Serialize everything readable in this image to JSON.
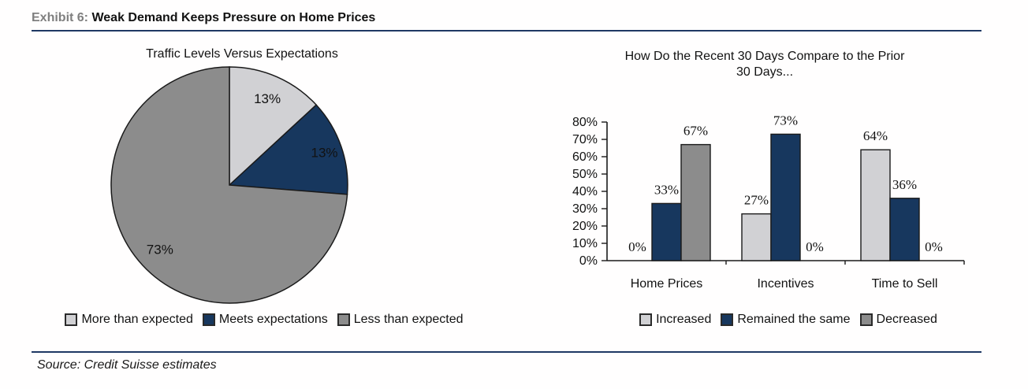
{
  "header": {
    "exhibit_label": "Exhibit 6:",
    "title": "Weak Demand Keeps Pressure on Home Prices"
  },
  "source": {
    "text": "Source: Credit Suisse estimates"
  },
  "colors": {
    "accent_rule": "#1f3864",
    "navy": "#17375e",
    "gray": "#8c8c8c",
    "light_gray": "#d1d1d4",
    "outline": "#1a1a1a",
    "exhibit_label_gray": "#7f7f7f"
  },
  "chart_data": [
    {
      "type": "pie",
      "title": "Traffic Levels Versus Expectations",
      "labels": [
        "More than expected",
        "Meets expectations",
        "Less than expected"
      ],
      "values": [
        13,
        13,
        73
      ],
      "value_labels": [
        "13%",
        "13%",
        "73%"
      ],
      "colors": [
        "#d1d1d4",
        "#17375e",
        "#8c8c8c"
      ],
      "start_angle_deg": -90,
      "direction": "clockwise",
      "legend_position": "bottom"
    },
    {
      "type": "bar",
      "title": "How Do the Recent 30 Days Compare to the Prior 30 Days...",
      "title_lines": [
        "How Do the Recent 30 Days Compare to the Prior",
        "30 Days..."
      ],
      "categories": [
        "Home Prices",
        "Incentives",
        "Time to Sell"
      ],
      "series": [
        {
          "name": "Increased",
          "color": "#d1d1d4",
          "values": [
            0,
            27,
            64
          ],
          "value_labels": [
            "0%",
            "27%",
            "64%"
          ]
        },
        {
          "name": "Remained the same",
          "color": "#17375e",
          "values": [
            33,
            73,
            36
          ],
          "value_labels": [
            "33%",
            "73%",
            "36%"
          ]
        },
        {
          "name": "Decreased",
          "color": "#8c8c8c",
          "values": [
            67,
            0,
            0
          ],
          "value_labels": [
            "67%",
            "0%",
            "0%"
          ]
        }
      ],
      "y_ticks": [
        "0%",
        "10%",
        "20%",
        "30%",
        "40%",
        "50%",
        "60%",
        "70%",
        "80%"
      ],
      "ylim": [
        0,
        80
      ],
      "ytick_step": 10,
      "grid": false,
      "legend_position": "bottom"
    }
  ]
}
